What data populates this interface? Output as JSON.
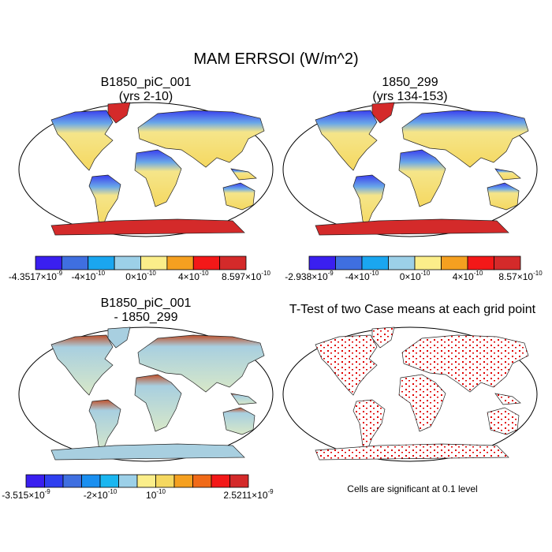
{
  "title": "MAM ERRSOI (W/m^2)",
  "panels": [
    {
      "title": "B1850_piC_001",
      "subtitle": "(yrs 2-10)",
      "colorbar": {
        "colors": [
          "#3a1ff0",
          "#3f6fe0",
          "#1aa6f0",
          "#9cd0e8",
          "#fbee8a",
          "#f5a020",
          "#f31818",
          "#d42a2a"
        ],
        "labels": [
          {
            "mantissa": "-4.3517×10",
            "exponent": "-9"
          },
          {
            "mantissa": "-4×10",
            "exponent": "-10"
          },
          {
            "mantissa": "0×10",
            "exponent": "-10"
          },
          {
            "mantissa": "4×10",
            "exponent": "-10"
          },
          {
            "mantissa": "8.597×10",
            "exponent": "-10"
          }
        ]
      }
    },
    {
      "title": "1850_299",
      "subtitle": "(yrs 134-153)",
      "colorbar": {
        "colors": [
          "#3a1ff0",
          "#3f6fe0",
          "#1aa6f0",
          "#9cd0e8",
          "#fbee8a",
          "#f5a020",
          "#f31818",
          "#d42a2a"
        ],
        "labels": [
          {
            "mantissa": "-2.938×10",
            "exponent": "-9"
          },
          {
            "mantissa": "-4×10",
            "exponent": "-10"
          },
          {
            "mantissa": "0×10",
            "exponent": "-10"
          },
          {
            "mantissa": "4×10",
            "exponent": "-10"
          },
          {
            "mantissa": "8.57×10",
            "exponent": "-10"
          }
        ]
      }
    },
    {
      "title": "B1850_piC_001",
      "subtitle": "- 1850_299",
      "colorbar": {
        "colors": [
          "#3a1ff0",
          "#2f3ff0",
          "#3f6fe0",
          "#1a8ff0",
          "#1ab6f0",
          "#9cd0e8",
          "#fbee8a",
          "#f5d860",
          "#f5a020",
          "#f06a18",
          "#f31818",
          "#d42a2a"
        ],
        "labels": [
          {
            "mantissa": "-3.515×10",
            "exponent": "-9"
          },
          {
            "mantissa": "-2×10",
            "exponent": "-10"
          },
          {
            "mantissa": "10",
            "exponent": "-10"
          },
          {
            "mantissa": "2.5211×10",
            "exponent": "-9"
          }
        ]
      }
    },
    {
      "title": "T-Test of two Case means at each grid point",
      "note": "Cells are significant at 0.1 level"
    }
  ]
}
